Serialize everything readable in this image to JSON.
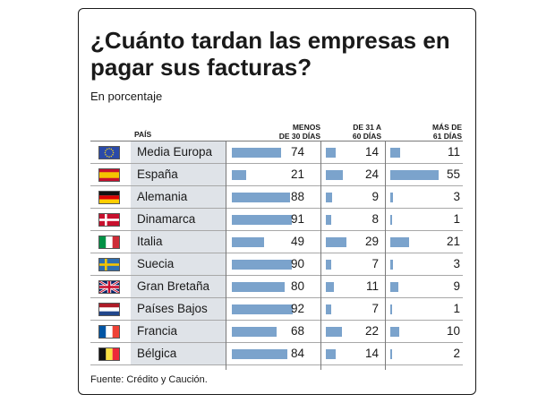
{
  "title": "¿Cuánto tardan las empresas en pagar sus facturas?",
  "subtitle": "En porcentaje",
  "source": "Fuente: Crédito y Caución.",
  "colors": {
    "bar": "#7ba3cc",
    "name_bg": "#dfe3e8"
  },
  "chart_data": {
    "type": "bar",
    "headers": {
      "country": "PAÍS",
      "groups": [
        "MENOS\nDE 30 DÍAS",
        "DE 31 A\n60 DÍAS",
        "MÁS DE\n61 DÍAS"
      ]
    },
    "categories": [
      "Media Europa",
      "España",
      "Alemania",
      "Dinamarca",
      "Italia",
      "Suecia",
      "Gran Bretaña",
      "Países Bajos",
      "Francia",
      "Bélgica"
    ],
    "flags": [
      "eu",
      "spain",
      "germany",
      "denmark",
      "italy",
      "sweden",
      "uk",
      "netherlands",
      "france",
      "belgium"
    ],
    "series": [
      {
        "values": [
          74,
          21,
          88,
          91,
          49,
          90,
          80,
          92,
          68,
          84
        ]
      },
      {
        "values": [
          14,
          24,
          9,
          8,
          29,
          7,
          11,
          7,
          22,
          14
        ]
      },
      {
        "values": [
          11,
          55,
          3,
          1,
          21,
          3,
          9,
          1,
          10,
          2
        ]
      }
    ]
  }
}
